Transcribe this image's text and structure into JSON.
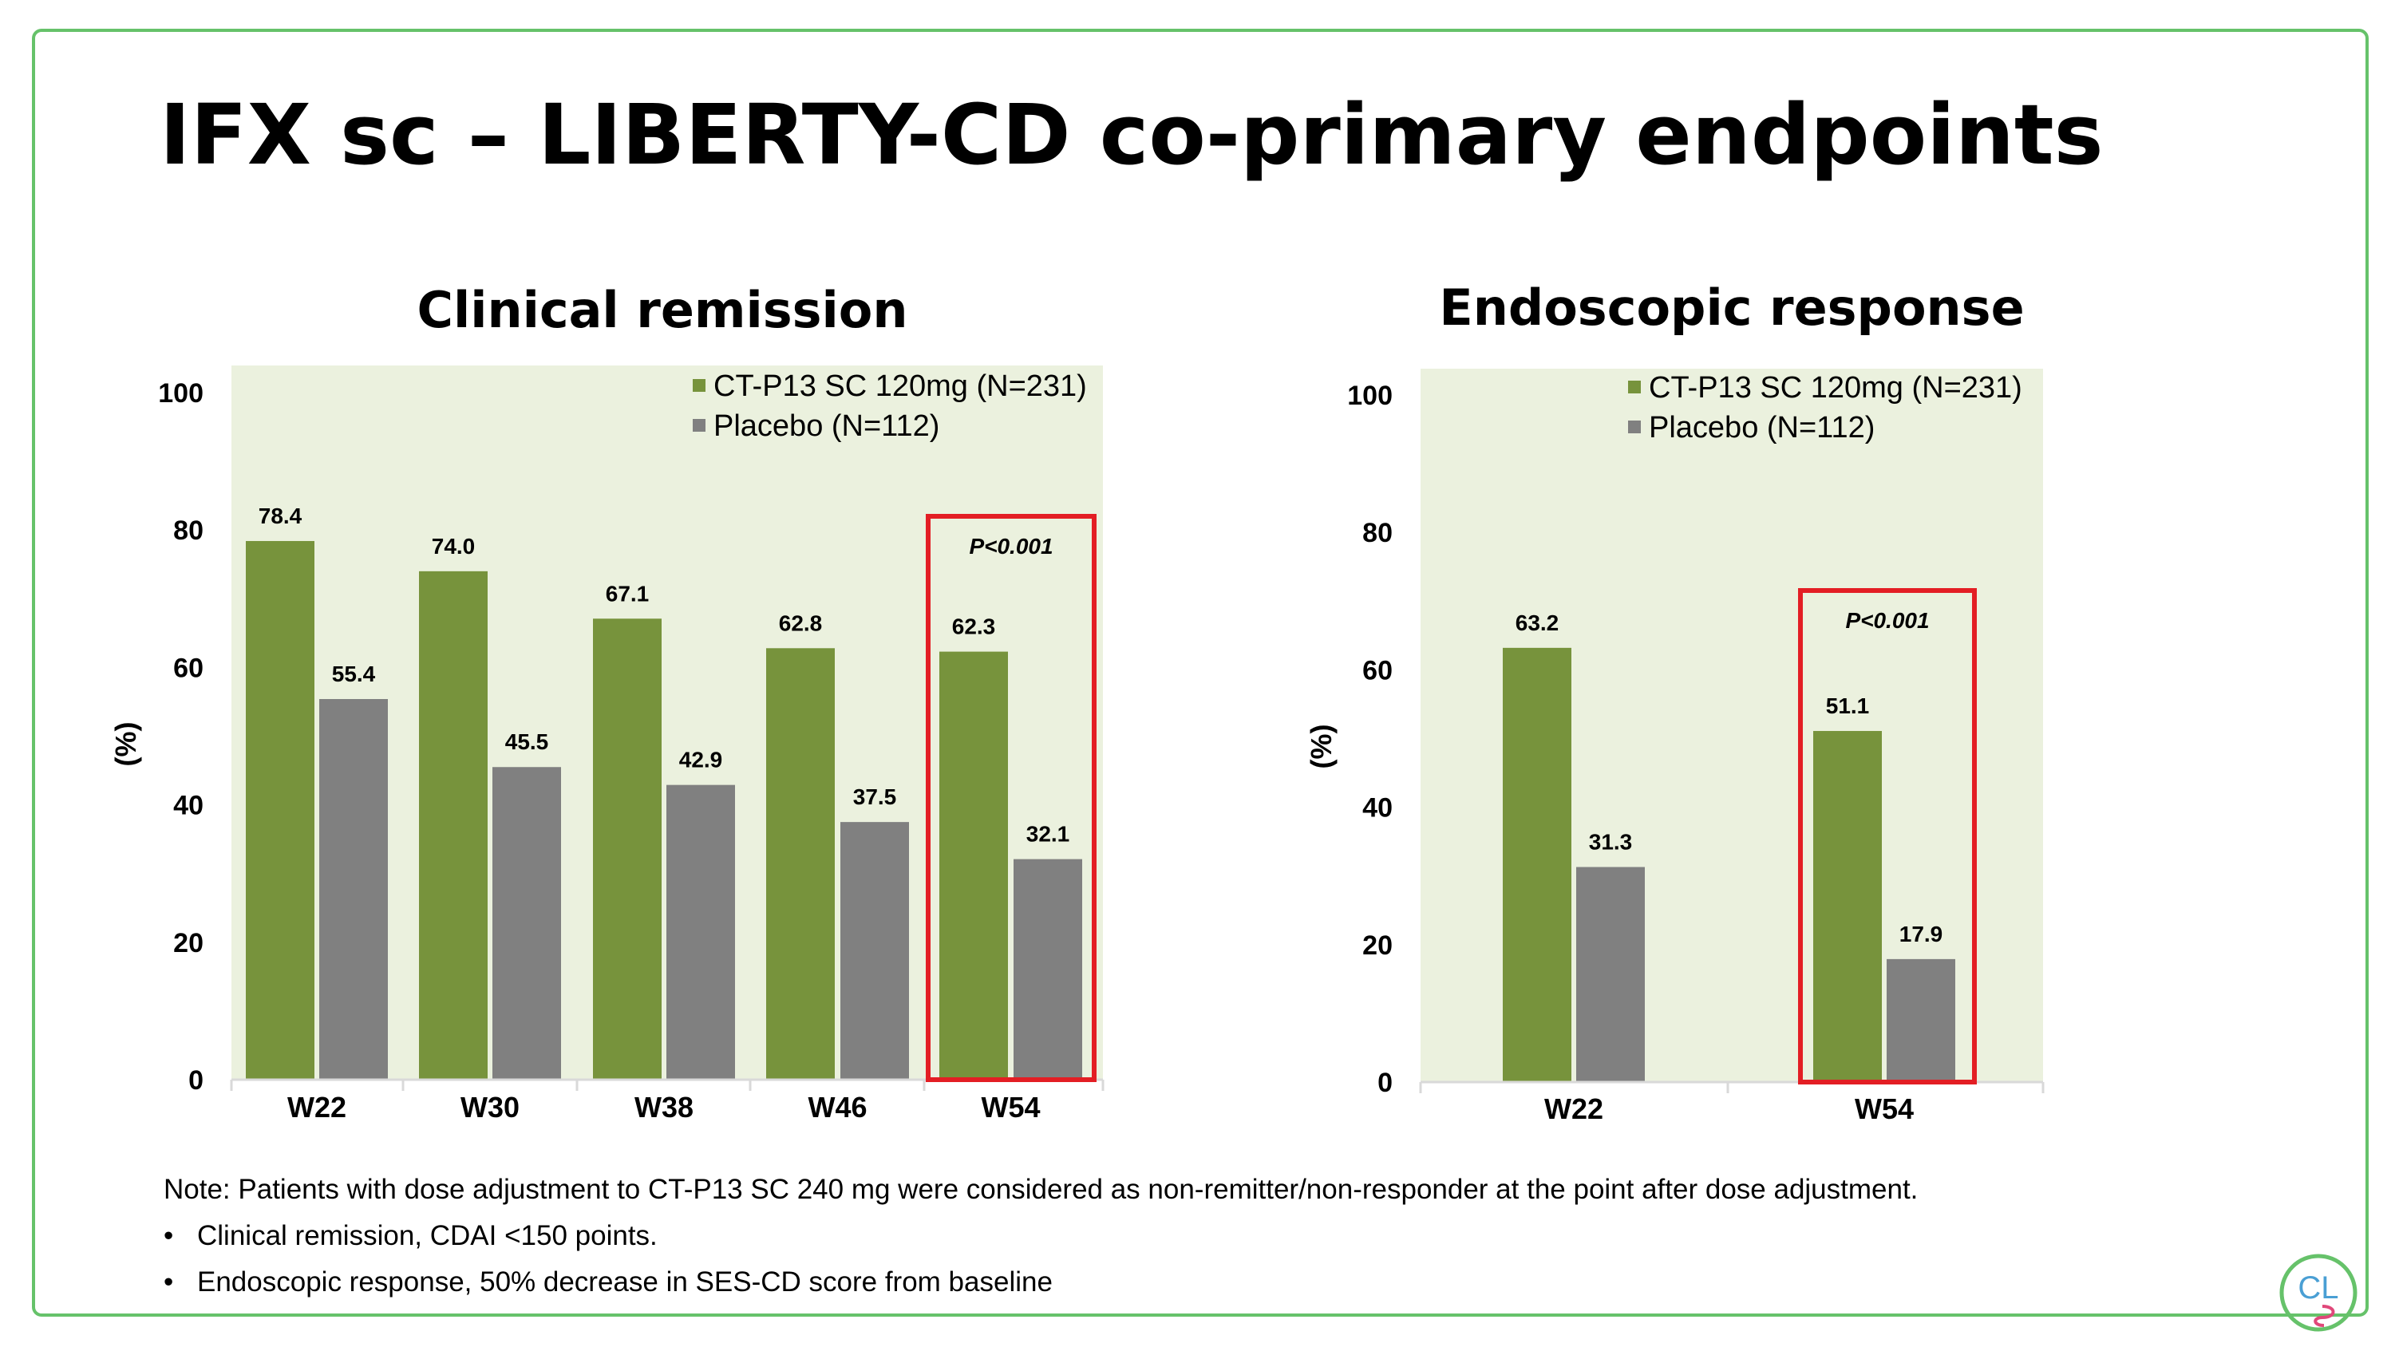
{
  "slide": {
    "title": "IFX sc – LIBERTY-CD co-primary endpoints",
    "notes": {
      "note": "Note: Patients with dose adjustment to CT-P13 SC 240 mg were considered as non-remitter/non-responder at the point after dose adjustment.",
      "bullets": [
        "Clinical remission, CDAI <150 points.",
        "Endoscopic response, 50% decrease in SES-CD score from baseline"
      ]
    },
    "logo_text": "CL"
  },
  "chart_data": [
    {
      "type": "bar",
      "title": "Clinical remission",
      "ylabel": "(%)",
      "ylim": [
        0,
        100
      ],
      "yticks": [
        0,
        20,
        40,
        60,
        80,
        100
      ],
      "categories": [
        "W22",
        "W30",
        "W38",
        "W46",
        "W54"
      ],
      "series": [
        {
          "name": "CT-P13 SC 120mg (N=231)",
          "color": "#77933c",
          "values": [
            78.4,
            74.0,
            67.1,
            62.8,
            62.3
          ]
        },
        {
          "name": "Placebo (N=112)",
          "color": "#808080",
          "values": [
            55.4,
            45.5,
            42.9,
            37.5,
            32.1
          ]
        }
      ],
      "value_labels": [
        [
          "78.4",
          "74.0",
          "67.1",
          "62.8",
          "62.3"
        ],
        [
          "55.4",
          "45.5",
          "42.9",
          "37.5",
          "32.1"
        ]
      ],
      "highlight": {
        "category": "W54",
        "label": "P<0.001",
        "color": "#e31e24"
      },
      "legend": "top-right",
      "background": "#ebf1de",
      "grid": false
    },
    {
      "type": "bar",
      "title": "Endoscopic response",
      "ylabel": "(%)",
      "ylim": [
        0,
        100
      ],
      "yticks": [
        0,
        20,
        40,
        60,
        80,
        100
      ],
      "categories": [
        "W22",
        "W54"
      ],
      "series": [
        {
          "name": "CT-P13 SC 120mg (N=231)",
          "color": "#77933c",
          "values": [
            63.2,
            51.1
          ]
        },
        {
          "name": "Placebo (N=112)",
          "color": "#808080",
          "values": [
            31.3,
            17.9
          ]
        }
      ],
      "value_labels": [
        [
          "63.2",
          "51.1"
        ],
        [
          "31.3",
          "17.9"
        ]
      ],
      "highlight": {
        "category": "W54",
        "label": "P<0.001",
        "color": "#e31e24"
      },
      "legend": "top-right",
      "background": "#ebf1de",
      "grid": false
    }
  ]
}
